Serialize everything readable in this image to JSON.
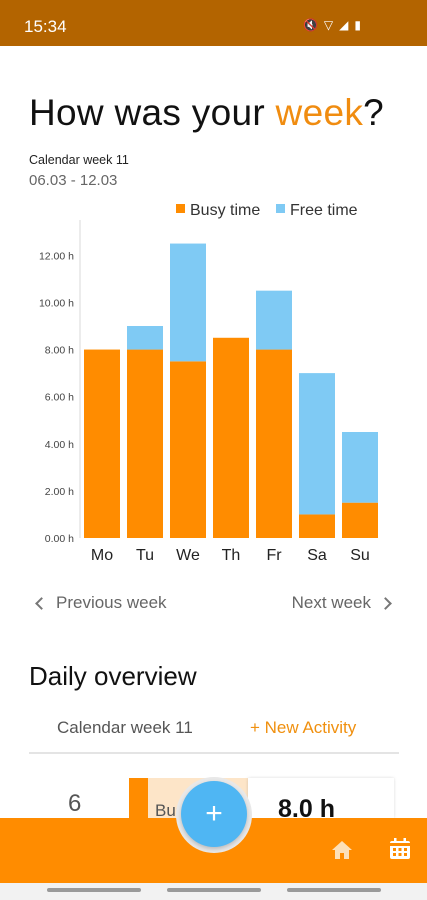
{
  "status_bar": {
    "time": "15:34",
    "icons": [
      "mute-icon",
      "wifi-icon",
      "signal-icon",
      "battery-icon"
    ]
  },
  "headline": {
    "prefix": "How was your ",
    "accent": "week",
    "suffix": "?"
  },
  "week": {
    "label": "Calendar week 11",
    "range": "06.03 - 12.03"
  },
  "chart_data": {
    "type": "bar",
    "stacked": true,
    "categories": [
      "Mo",
      "Tu",
      "We",
      "Th",
      "Fr",
      "Sa",
      "Su"
    ],
    "series": [
      {
        "name": "Busy time",
        "color": "#ff8c00",
        "values": [
          8.0,
          8.0,
          7.5,
          8.5,
          8.0,
          1.0,
          1.5
        ]
      },
      {
        "name": "Free time",
        "color": "#7fcaf4",
        "values": [
          0,
          1.0,
          5.0,
          0,
          2.5,
          6.0,
          3.0
        ]
      }
    ],
    "y_ticks": [
      "0.00 h",
      "2.00 h",
      "4.00 h",
      "6.00 h",
      "8.00 h",
      "10.00 h",
      "12.00 h"
    ],
    "ylim": [
      0,
      13.5
    ],
    "legend_position": "top-right",
    "grid": false
  },
  "navigation": {
    "previous_label": "Previous week",
    "next_label": "Next week"
  },
  "daily_overview": {
    "title": "Daily overview",
    "week_tab": "Calendar week 11",
    "new_activity": "+ New Activity",
    "card": {
      "day_number": "6",
      "busy_label": "Bus",
      "hours": "8.0 h"
    }
  },
  "fab": {
    "symbol": "+"
  },
  "colors": {
    "status_bar": "#b36400",
    "accent": "#f08c10",
    "busy": "#ff8c00",
    "free": "#7fcaf4",
    "fab": "#4fb6f3"
  }
}
